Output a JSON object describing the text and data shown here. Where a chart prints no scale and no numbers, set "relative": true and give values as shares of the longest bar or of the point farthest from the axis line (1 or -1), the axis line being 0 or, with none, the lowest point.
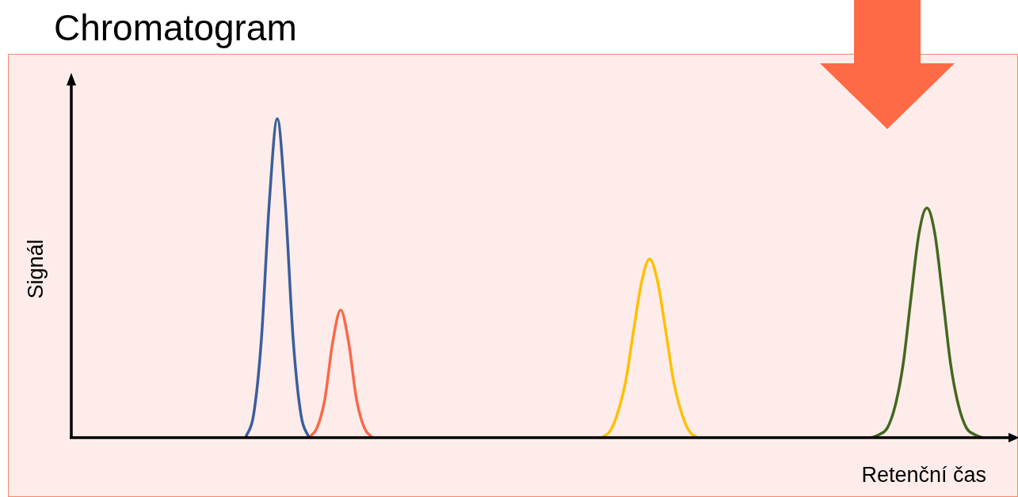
{
  "chart_data": {
    "type": "line",
    "title": "Chromatogram",
    "xlabel": "Retenční čas",
    "ylabel": "Signál",
    "relative": true,
    "legend": false,
    "grid": false,
    "marker": "none",
    "line_style": "solid",
    "categories": [
      null,
      null,
      null,
      null,
      null,
      null,
      null,
      null,
      null,
      null,
      null,
      null,
      null,
      null,
      null,
      null,
      null,
      null,
      null,
      null,
      null,
      null,
      null,
      null,
      null,
      null,
      null,
      null,
      null,
      null,
      null,
      null,
      null,
      null,
      null,
      null,
      null,
      null,
      null,
      null,
      null,
      null,
      null,
      null,
      null,
      null,
      null,
      null,
      null,
      null,
      null,
      null,
      null,
      null,
      null,
      null,
      null,
      null,
      null,
      null,
      null,
      null,
      null,
      null,
      null,
      null,
      null,
      null,
      null,
      null,
      null,
      null,
      null,
      null,
      null,
      null,
      null,
      null,
      null,
      null,
      null,
      null,
      null,
      null,
      null,
      null,
      null,
      null,
      null,
      null,
      null,
      null,
      null,
      null,
      null,
      null,
      null,
      null,
      null,
      null,
      null,
      null,
      null,
      null,
      null,
      null,
      null,
      null,
      null,
      null,
      null,
      null,
      null,
      null,
      null,
      null,
      null,
      null,
      null,
      null
    ],
    "series": [
      {
        "color": "#3b5e9c",
        "values": [
          null,
          null,
          null,
          null,
          null,
          null,
          null,
          null,
          null,
          null,
          null,
          null,
          null,
          null,
          null,
          null,
          null,
          null,
          null,
          null,
          null,
          null,
          0,
          0.07,
          0.31,
          0.74,
          1,
          0.74,
          0.31,
          0.07,
          0,
          null,
          null,
          null,
          null,
          null,
          null,
          null,
          null,
          null,
          null,
          null,
          null,
          null,
          null,
          null,
          null,
          null,
          null,
          null,
          null,
          null,
          null,
          null,
          null,
          null,
          null,
          null,
          null,
          null,
          null,
          null,
          null,
          null,
          null,
          null,
          null,
          null,
          null,
          null,
          null,
          null,
          null,
          null,
          null,
          null,
          null,
          null,
          null,
          null,
          null,
          null,
          null,
          null,
          null,
          null,
          null,
          null,
          null,
          null,
          null,
          null,
          null,
          null,
          null,
          null,
          null,
          null,
          null,
          null,
          null,
          null,
          null,
          null,
          null,
          null,
          null,
          null,
          null,
          null,
          null,
          null,
          null,
          null,
          null,
          null,
          null,
          null,
          null,
          null
        ]
      },
      {
        "color": "#f9694a",
        "values": [
          null,
          null,
          null,
          null,
          null,
          null,
          null,
          null,
          null,
          null,
          null,
          null,
          null,
          null,
          null,
          null,
          null,
          null,
          null,
          null,
          null,
          null,
          null,
          null,
          null,
          null,
          null,
          null,
          null,
          null,
          0,
          0.03,
          0.12,
          0.3,
          0.4,
          0.3,
          0.12,
          0.03,
          0,
          null,
          null,
          null,
          null,
          null,
          null,
          null,
          null,
          null,
          null,
          null,
          null,
          null,
          null,
          null,
          null,
          null,
          null,
          null,
          null,
          null,
          null,
          null,
          null,
          null,
          null,
          null,
          null,
          null,
          null,
          null,
          null,
          null,
          null,
          null,
          null,
          null,
          null,
          null,
          null,
          null,
          null,
          null,
          null,
          null,
          null,
          null,
          null,
          null,
          null,
          null,
          null,
          null,
          null,
          null,
          null,
          null,
          null,
          null,
          null,
          null,
          null,
          null,
          null,
          null,
          null,
          null,
          null,
          null,
          null,
          null,
          null,
          null,
          null,
          null,
          null,
          null,
          null,
          null,
          null,
          null
        ]
      },
      {
        "color": "#ffc000",
        "values": [
          null,
          null,
          null,
          null,
          null,
          null,
          null,
          null,
          null,
          null,
          null,
          null,
          null,
          null,
          null,
          null,
          null,
          null,
          null,
          null,
          null,
          null,
          null,
          null,
          null,
          null,
          null,
          null,
          null,
          null,
          null,
          null,
          null,
          null,
          null,
          null,
          null,
          null,
          null,
          null,
          null,
          null,
          null,
          null,
          null,
          null,
          null,
          null,
          null,
          null,
          null,
          null,
          null,
          null,
          null,
          null,
          null,
          null,
          null,
          null,
          null,
          null,
          null,
          null,
          null,
          null,
          null,
          0,
          0.02,
          0.08,
          0.18,
          0.34,
          0.49,
          0.56,
          0.49,
          0.34,
          0.18,
          0.08,
          0.02,
          0,
          null,
          null,
          null,
          null,
          null,
          null,
          null,
          null,
          null,
          null,
          null,
          null,
          null,
          null,
          null,
          null,
          null,
          null,
          null,
          null,
          null,
          null,
          null,
          null,
          null,
          null,
          null,
          null,
          null,
          null,
          null,
          null,
          null,
          null,
          null,
          null,
          null,
          null,
          null,
          null
        ]
      },
      {
        "color": "#43681f",
        "values": [
          null,
          null,
          null,
          null,
          null,
          null,
          null,
          null,
          null,
          null,
          null,
          null,
          null,
          null,
          null,
          null,
          null,
          null,
          null,
          null,
          null,
          null,
          null,
          null,
          null,
          null,
          null,
          null,
          null,
          null,
          null,
          null,
          null,
          null,
          null,
          null,
          null,
          null,
          null,
          null,
          null,
          null,
          null,
          null,
          null,
          null,
          null,
          null,
          null,
          null,
          null,
          null,
          null,
          null,
          null,
          null,
          null,
          null,
          null,
          null,
          null,
          null,
          null,
          null,
          null,
          null,
          null,
          null,
          null,
          null,
          null,
          null,
          null,
          null,
          null,
          null,
          null,
          null,
          null,
          null,
          null,
          null,
          null,
          null,
          null,
          null,
          null,
          null,
          null,
          null,
          null,
          null,
          null,
          null,
          null,
          null,
          null,
          null,
          null,
          null,
          null,
          0,
          0.01,
          0.03,
          0.1,
          0.23,
          0.44,
          0.64,
          0.72,
          0.64,
          0.44,
          0.23,
          0.1,
          0.03,
          0.01,
          0,
          null,
          null,
          null,
          null
        ]
      }
    ]
  }
}
